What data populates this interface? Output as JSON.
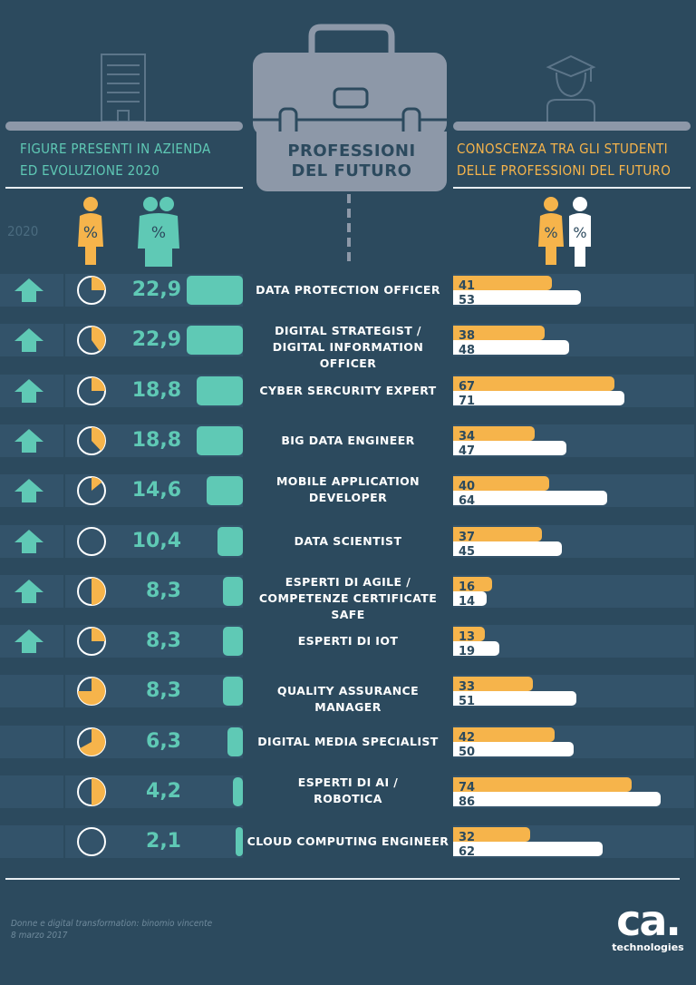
{
  "header": {
    "left_title": "FIGURE PRESENTI IN AZIENDA ED EVOLUZIONE 2020",
    "left_line1": "FIGURE PRESENTI IN AZIENDA",
    "left_line2": "ED EVOLUZIONE 2020",
    "center_line1": "PROFESSIONI",
    "center_line2": "DEL FUTURO",
    "right_line1": "CONOSCENZA TRA GLI STUDENTI",
    "right_line2": "DELLE PROFESSIONI DEL FUTURO",
    "year_label": "2020",
    "pct_symbol": "%"
  },
  "colors": {
    "background": "#2c4a5e",
    "teal": "#5fc9b5",
    "orange": "#f6b44b",
    "white": "#ffffff",
    "gray": "#8d98a8"
  },
  "chart_data": {
    "type": "bar",
    "rows": [
      {
        "label": [
          "DATA PROTECTION OFFICER"
        ],
        "growth_2020": true,
        "total_pct": "22,9",
        "total": 22.9,
        "female_share": 0.25,
        "female_students": 41,
        "male_students": 53
      },
      {
        "label": [
          "DIGITAL STRATEGIST /",
          "DIGITAL INFORMATION OFFICER"
        ],
        "growth_2020": true,
        "total_pct": "22,9",
        "total": 22.9,
        "female_share": 0.4,
        "female_students": 38,
        "male_students": 48
      },
      {
        "label": [
          "CYBER SERCURITY EXPERT"
        ],
        "growth_2020": true,
        "total_pct": "18,8",
        "total": 18.8,
        "female_share": 0.25,
        "female_students": 67,
        "male_students": 71
      },
      {
        "label": [
          "BIG DATA ENGINEER"
        ],
        "growth_2020": true,
        "total_pct": "18,8",
        "total": 18.8,
        "female_share": 0.38,
        "female_students": 34,
        "male_students": 47
      },
      {
        "label": [
          "MOBILE APPLICATION",
          "DEVELOPER"
        ],
        "growth_2020": true,
        "total_pct": "14,6",
        "total": 14.6,
        "female_share": 0.14,
        "female_students": 40,
        "male_students": 64
      },
      {
        "label": [
          "DATA SCIENTIST"
        ],
        "growth_2020": true,
        "total_pct": "10,4",
        "total": 10.4,
        "female_share": 0.0,
        "female_students": 37,
        "male_students": 45
      },
      {
        "label": [
          "ESPERTI DI AGILE /",
          "COMPETENZE CERTIFICATE SAFE"
        ],
        "growth_2020": true,
        "total_pct": "8,3",
        "total": 8.3,
        "female_share": 0.5,
        "female_students": 16,
        "male_students": 14
      },
      {
        "label": [
          "ESPERTI DI IOT"
        ],
        "growth_2020": true,
        "total_pct": "8,3",
        "total": 8.3,
        "female_share": 0.25,
        "female_students": 13,
        "male_students": 19
      },
      {
        "label": [
          "QUALITY ASSURANCE MANAGER"
        ],
        "growth_2020": false,
        "total_pct": "8,3",
        "total": 8.3,
        "female_share": 0.75,
        "female_students": 33,
        "male_students": 51
      },
      {
        "label": [
          "DIGITAL MEDIA SPECIALIST"
        ],
        "growth_2020": false,
        "total_pct": "6,3",
        "total": 6.3,
        "female_share": 0.67,
        "female_students": 42,
        "male_students": 50
      },
      {
        "label": [
          "ESPERTI DI AI /",
          "ROBOTICA"
        ],
        "growth_2020": false,
        "total_pct": "4,2",
        "total": 4.2,
        "female_share": 0.5,
        "female_students": 74,
        "male_students": 86
      },
      {
        "label": [
          "CLOUD COMPUTING ENGINEER"
        ],
        "growth_2020": false,
        "total_pct": "2,1",
        "total": 2.1,
        "female_share": 0.0,
        "female_students": 32,
        "male_students": 62
      }
    ],
    "student_scale_max": 100
  },
  "footer": {
    "source_line1": "Donne e digital transformation: binomio vincente",
    "source_line2": "8 marzo 2017",
    "logo_text": "ca.",
    "logo_sub": "technologies"
  }
}
